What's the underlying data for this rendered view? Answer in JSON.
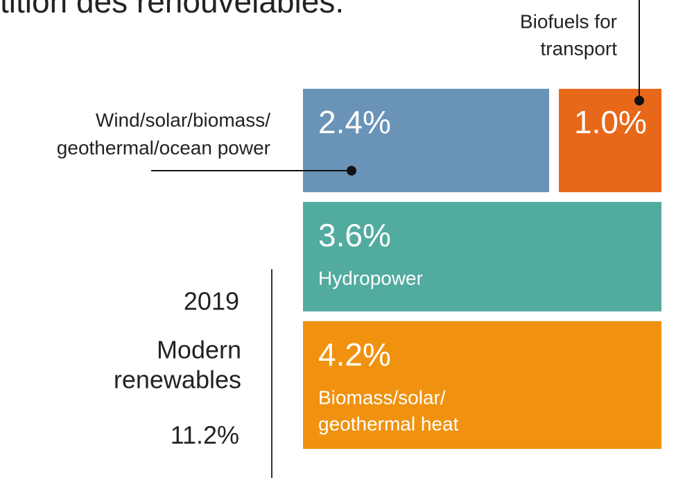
{
  "chart_data": {
    "type": "treemap",
    "title": "tition des renouvelables.",
    "year": "2019",
    "label": [
      "Modern",
      "renewables"
    ],
    "total": 11.2,
    "total_label": "11.2%",
    "segments": [
      {
        "name": [
          "Wind/solar/biomass/",
          "geothermal/ocean power"
        ],
        "value": 2.4,
        "value_label": "2.4%",
        "color": "#6a93b8"
      },
      {
        "name": [
          "Biofuels for",
          "transport"
        ],
        "value": 1.0,
        "value_label": "1.0%",
        "color": "#e8681a"
      },
      {
        "name": [
          "Hydropower"
        ],
        "value": 3.6,
        "value_label": "3.6%",
        "color": "#52ab9f"
      },
      {
        "name": [
          "Biomass/solar/",
          "geothermal heat"
        ],
        "value": 4.2,
        "value_label": "4.2%",
        "color": "#f0920f"
      }
    ]
  }
}
